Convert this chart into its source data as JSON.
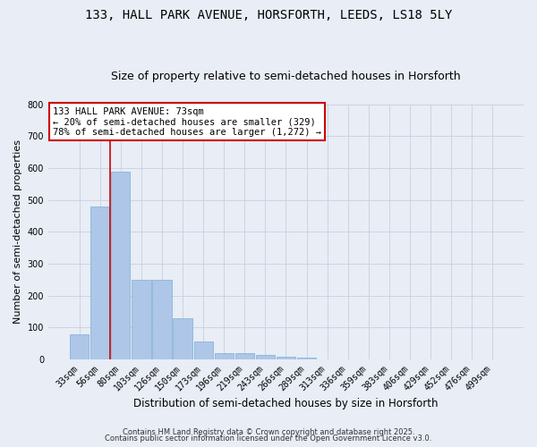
{
  "title": "133, HALL PARK AVENUE, HORSFORTH, LEEDS, LS18 5LY",
  "subtitle": "Size of property relative to semi-detached houses in Horsforth",
  "xlabel": "Distribution of semi-detached houses by size in Horsforth",
  "ylabel": "Number of semi-detached properties",
  "categories": [
    "33sqm",
    "56sqm",
    "80sqm",
    "103sqm",
    "126sqm",
    "150sqm",
    "173sqm",
    "196sqm",
    "219sqm",
    "243sqm",
    "266sqm",
    "289sqm",
    "313sqm",
    "336sqm",
    "359sqm",
    "383sqm",
    "406sqm",
    "429sqm",
    "452sqm",
    "476sqm",
    "499sqm"
  ],
  "values": [
    80,
    480,
    590,
    250,
    250,
    130,
    55,
    20,
    20,
    15,
    8,
    5,
    1,
    0,
    0,
    0,
    0,
    0,
    0,
    0,
    0
  ],
  "bar_color": "#aec6e8",
  "bar_edge_color": "#7ab0d4",
  "grid_color": "#c8d0de",
  "background_color": "#e8edf6",
  "vline_color": "#cc0000",
  "annotation_title": "133 HALL PARK AVENUE: 73sqm",
  "annotation_line1": "← 20% of semi-detached houses are smaller (329)",
  "annotation_line2": "78% of semi-detached houses are larger (1,272) →",
  "annotation_box_color": "#ffffff",
  "annotation_box_edge": "#cc0000",
  "ylim": [
    0,
    800
  ],
  "yticks": [
    0,
    100,
    200,
    300,
    400,
    500,
    600,
    700,
    800
  ],
  "footer1": "Contains HM Land Registry data © Crown copyright and database right 2025.",
  "footer2": "Contains public sector information licensed under the Open Government Licence v3.0.",
  "title_fontsize": 10,
  "subtitle_fontsize": 9,
  "tick_fontsize": 7,
  "ylabel_fontsize": 8,
  "xlabel_fontsize": 8.5,
  "annotation_fontsize": 7.5,
  "footer_fontsize": 6
}
